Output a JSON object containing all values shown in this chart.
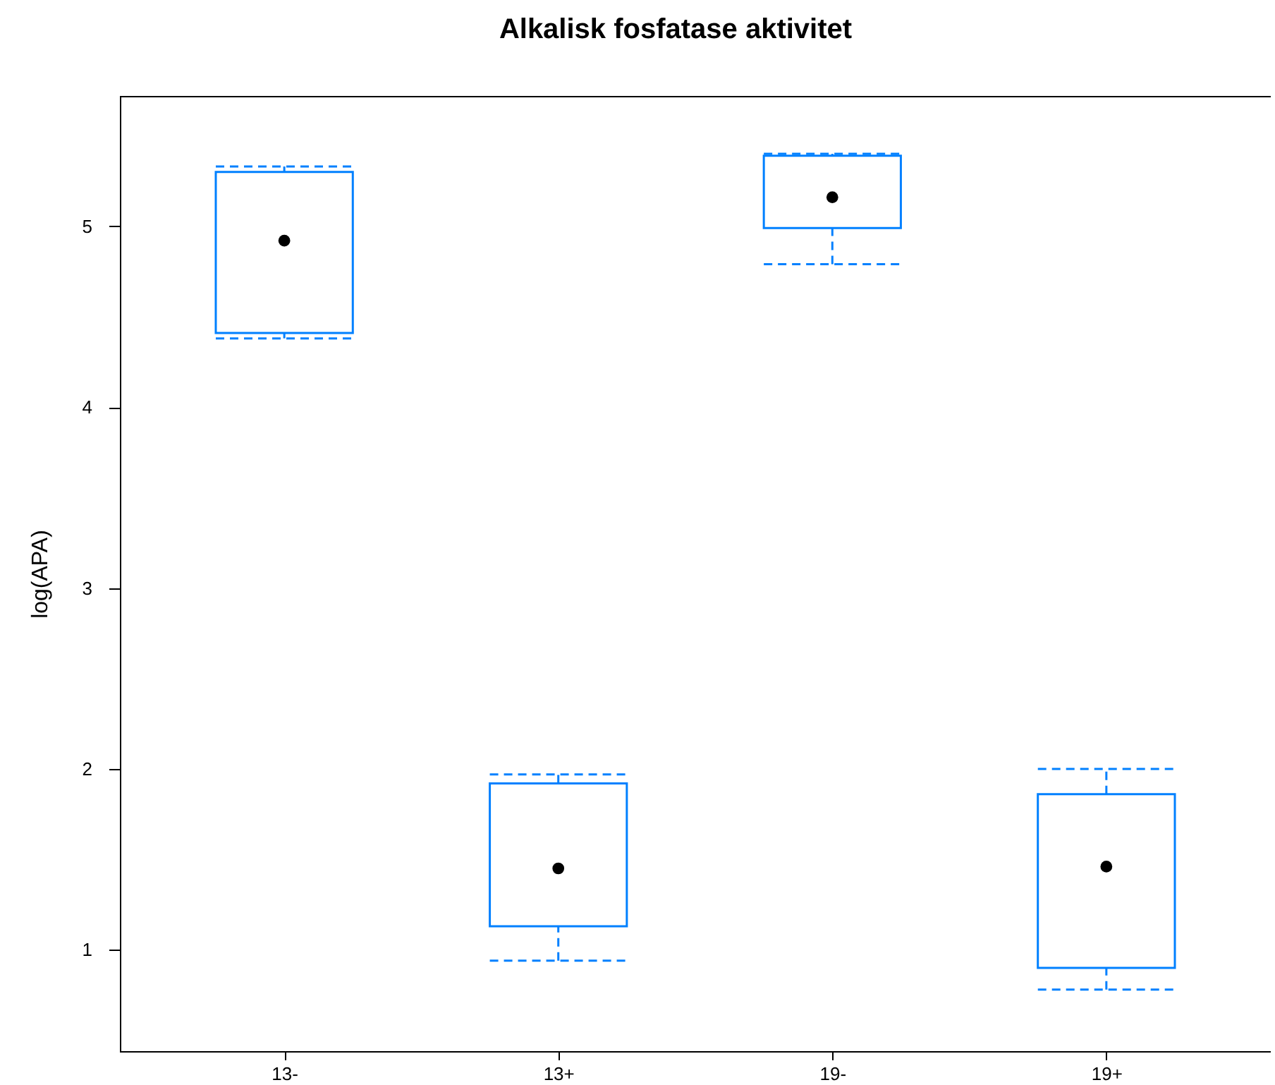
{
  "chart_data": {
    "type": "box",
    "title": "Alkalisk fosfatase aktivitet",
    "ylabel": "log(APA)",
    "categories": [
      "13-",
      "13+",
      "19-",
      "19+"
    ],
    "boxes": [
      {
        "low": 4.38,
        "q1": 4.41,
        "median": 4.92,
        "q3": 5.3,
        "high": 5.33
      },
      {
        "low": 0.94,
        "q1": 1.13,
        "median": 1.45,
        "q3": 1.92,
        "high": 1.97
      },
      {
        "low": 4.79,
        "q1": 4.99,
        "median": 5.16,
        "q3": 5.39,
        "high": 5.4
      },
      {
        "low": 0.78,
        "q1": 0.9,
        "median": 1.46,
        "q3": 1.86,
        "high": 2.0
      }
    ],
    "color": "#0080ff",
    "ylim": [
      0.44,
      5.72
    ],
    "yticks": [
      1,
      2,
      3,
      4,
      5
    ],
    "line_style": "dashed",
    "marker": "circle"
  }
}
